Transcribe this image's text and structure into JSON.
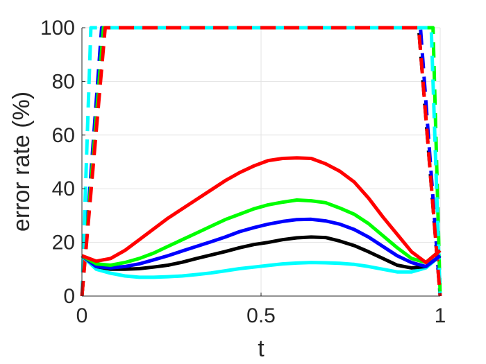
{
  "chart_data": {
    "type": "line",
    "xlabel": "t",
    "ylabel": "error rate (%)",
    "xlim": [
      0,
      1
    ],
    "ylim": [
      0,
      100
    ],
    "xticks": [
      0,
      0.5,
      1
    ],
    "xtick_labels": [
      "0",
      "0.5",
      "1"
    ],
    "yticks": [
      0,
      20,
      40,
      60,
      80,
      100
    ],
    "ytick_labels": [
      "0",
      "20",
      "40",
      "60",
      "80",
      "100"
    ],
    "grid": true,
    "legend": "none",
    "series": [
      {
        "color": "#000000",
        "style": "dashed",
        "x": [
          0,
          0.06,
          0.94,
          1
        ],
        "y": [
          0,
          100,
          100,
          0
        ]
      },
      {
        "color": "#0000ff",
        "style": "dashed",
        "x": [
          0,
          0.055,
          0.945,
          1
        ],
        "y": [
          0,
          100,
          100,
          0
        ]
      },
      {
        "color": "#00ff00",
        "style": "dashed",
        "x": [
          0,
          0.06,
          0.98,
          1
        ],
        "y": [
          0,
          100,
          100,
          0
        ]
      },
      {
        "color": "#00ffff",
        "style": "dashed",
        "x": [
          0,
          0.025,
          0.975,
          1
        ],
        "y": [
          0,
          100,
          100,
          0
        ]
      },
      {
        "color": "#ff0000",
        "style": "dashed",
        "x": [
          0,
          0.065,
          0.94,
          1
        ],
        "y": [
          0,
          100,
          100,
          0
        ]
      },
      {
        "color": "#00ffff",
        "style": "solid",
        "x": [
          0,
          0.04,
          0.08,
          0.12,
          0.16,
          0.2,
          0.24,
          0.28,
          0.32,
          0.36,
          0.4,
          0.44,
          0.48,
          0.52,
          0.56,
          0.6,
          0.64,
          0.68,
          0.72,
          0.76,
          0.8,
          0.84,
          0.88,
          0.92,
          0.96,
          1
        ],
        "y": [
          15,
          10,
          8.5,
          7.5,
          7,
          7,
          7.2,
          7.5,
          8,
          8.6,
          9.4,
          10.2,
          10.8,
          11.4,
          12,
          12.3,
          12.5,
          12.4,
          12.2,
          11.8,
          11,
          10,
          9,
          9,
          10.5,
          15
        ]
      },
      {
        "color": "#000000",
        "style": "solid",
        "x": [
          0,
          0.04,
          0.08,
          0.12,
          0.16,
          0.2,
          0.24,
          0.28,
          0.32,
          0.36,
          0.4,
          0.44,
          0.48,
          0.52,
          0.56,
          0.6,
          0.64,
          0.68,
          0.72,
          0.76,
          0.8,
          0.84,
          0.88,
          0.92,
          0.96,
          1
        ],
        "y": [
          15,
          11,
          10,
          10,
          10.2,
          10.8,
          11.5,
          12.6,
          14,
          15.3,
          16.6,
          18,
          19.2,
          20,
          21,
          21.7,
          22,
          21.8,
          20.5,
          18.8,
          16.5,
          14,
          11.5,
          10.5,
          11,
          15
        ]
      },
      {
        "color": "#0000ff",
        "style": "solid",
        "x": [
          0,
          0.04,
          0.08,
          0.12,
          0.16,
          0.2,
          0.24,
          0.28,
          0.32,
          0.36,
          0.4,
          0.44,
          0.48,
          0.52,
          0.56,
          0.6,
          0.64,
          0.68,
          0.72,
          0.76,
          0.8,
          0.84,
          0.88,
          0.92,
          0.96,
          1
        ],
        "y": [
          15,
          11,
          10.5,
          11,
          12,
          13.5,
          15,
          16.8,
          18.5,
          20.2,
          22,
          24,
          25.5,
          26.8,
          27.8,
          28.5,
          28.6,
          28,
          26.8,
          24.8,
          22,
          18.5,
          15,
          12.5,
          11,
          15
        ]
      },
      {
        "color": "#00ff00",
        "style": "solid",
        "x": [
          0,
          0.04,
          0.08,
          0.12,
          0.16,
          0.2,
          0.24,
          0.28,
          0.32,
          0.36,
          0.4,
          0.44,
          0.48,
          0.52,
          0.56,
          0.6,
          0.64,
          0.68,
          0.72,
          0.76,
          0.8,
          0.84,
          0.88,
          0.92,
          0.96,
          1
        ],
        "y": [
          15,
          12,
          11.5,
          12.5,
          14,
          16,
          18.5,
          21,
          23.5,
          26,
          28.5,
          30.5,
          32.5,
          34,
          35,
          35.8,
          35.5,
          34.8,
          32.8,
          30.5,
          27,
          22.5,
          18,
          14,
          12.5,
          17
        ]
      },
      {
        "color": "#ff0000",
        "style": "solid",
        "x": [
          0,
          0.04,
          0.08,
          0.12,
          0.16,
          0.2,
          0.24,
          0.28,
          0.32,
          0.36,
          0.4,
          0.44,
          0.48,
          0.52,
          0.56,
          0.6,
          0.64,
          0.68,
          0.72,
          0.76,
          0.8,
          0.84,
          0.88,
          0.92,
          0.96,
          1
        ],
        "y": [
          15,
          13,
          14,
          17,
          21,
          25,
          29,
          32.5,
          36,
          39.5,
          43,
          46,
          48.5,
          50.5,
          51.3,
          51.5,
          51.3,
          49.3,
          46.5,
          42.5,
          36.5,
          29.5,
          23,
          16.5,
          12.5,
          17
        ]
      }
    ]
  }
}
